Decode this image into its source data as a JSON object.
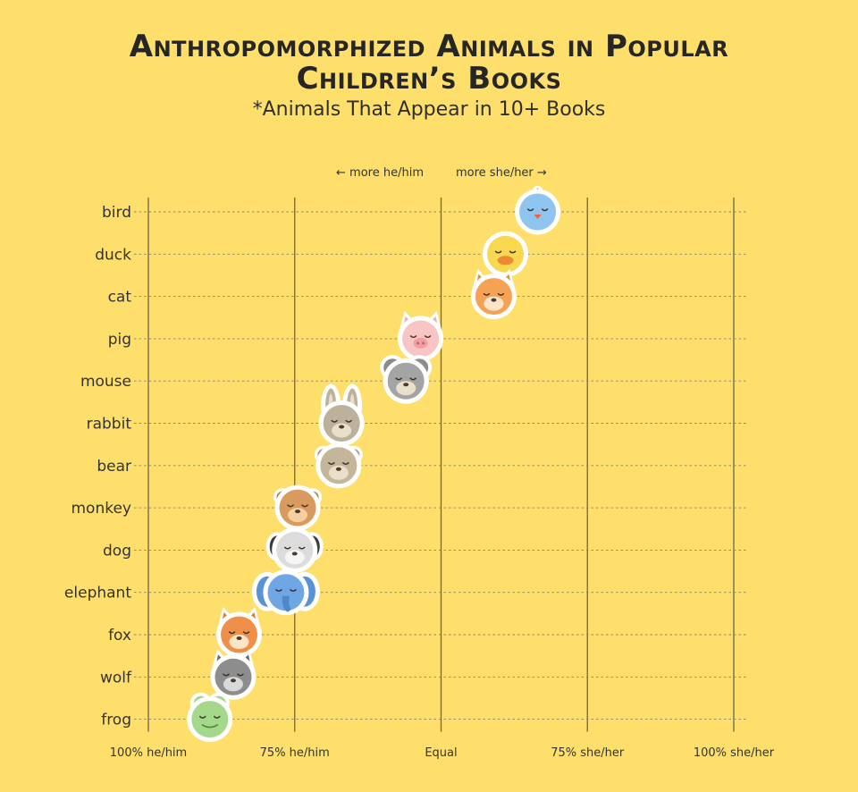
{
  "title_line1": "Anthropomorphized Animals in Popular",
  "title_line2": "Children’s Books",
  "subtitle": "*Animals That Appear in 10+ Books",
  "direction_labels": {
    "left": "← more he/him",
    "right": "more she/her →"
  },
  "chart_data": {
    "type": "scatter",
    "title": "Anthropomorphized Animals in Popular Children’s Books",
    "subtitle": "*Animals That Appear in 10+ Books",
    "xlabel": "",
    "ylabel": "",
    "x_ticks": [
      {
        "value": -100,
        "label": "100% he/him"
      },
      {
        "value": -50,
        "label": "75% he/him"
      },
      {
        "value": 0,
        "label": "Equal"
      },
      {
        "value": 50,
        "label": "75% she/her"
      },
      {
        "value": 100,
        "label": "100% she/her"
      }
    ],
    "xlim": [
      -100,
      100
    ],
    "categories": [
      "bird",
      "duck",
      "cat",
      "pig",
      "mouse",
      "rabbit",
      "bear",
      "monkey",
      "dog",
      "elephant",
      "fox",
      "wolf",
      "frog"
    ],
    "points": [
      {
        "animal": "bird",
        "x": 33,
        "face_color": "#8fc4ee",
        "icon": "bird-icon"
      },
      {
        "animal": "duck",
        "x": 22,
        "face_color": "#f8d84e",
        "icon": "duck-icon"
      },
      {
        "animal": "cat",
        "x": 18,
        "face_color": "#f5a254",
        "icon": "cat-icon"
      },
      {
        "animal": "pig",
        "x": -7,
        "face_color": "#f7c6c4",
        "icon": "pig-icon"
      },
      {
        "animal": "mouse",
        "x": -12,
        "face_color": "#a4a4a4",
        "icon": "mouse-icon"
      },
      {
        "animal": "rabbit",
        "x": -34,
        "face_color": "#bcb29c",
        "icon": "rabbit-icon"
      },
      {
        "animal": "bear",
        "x": -35,
        "face_color": "#c4b69a",
        "icon": "bear-icon"
      },
      {
        "animal": "monkey",
        "x": -49,
        "face_color": "#d89a5e",
        "icon": "monkey-icon"
      },
      {
        "animal": "dog",
        "x": -50,
        "face_color": "#dcdcdc",
        "icon": "dog-icon"
      },
      {
        "animal": "elephant",
        "x": -53,
        "face_color": "#6fa6e4",
        "icon": "elephant-icon"
      },
      {
        "animal": "fox",
        "x": -69,
        "face_color": "#f08f4a",
        "icon": "fox-icon"
      },
      {
        "animal": "wolf",
        "x": -71,
        "face_color": "#8d8d8d",
        "icon": "wolf-icon"
      },
      {
        "animal": "frog",
        "x": -79,
        "face_color": "#a6d88c",
        "icon": "frog-icon"
      }
    ],
    "grid": true,
    "legend": "none"
  }
}
